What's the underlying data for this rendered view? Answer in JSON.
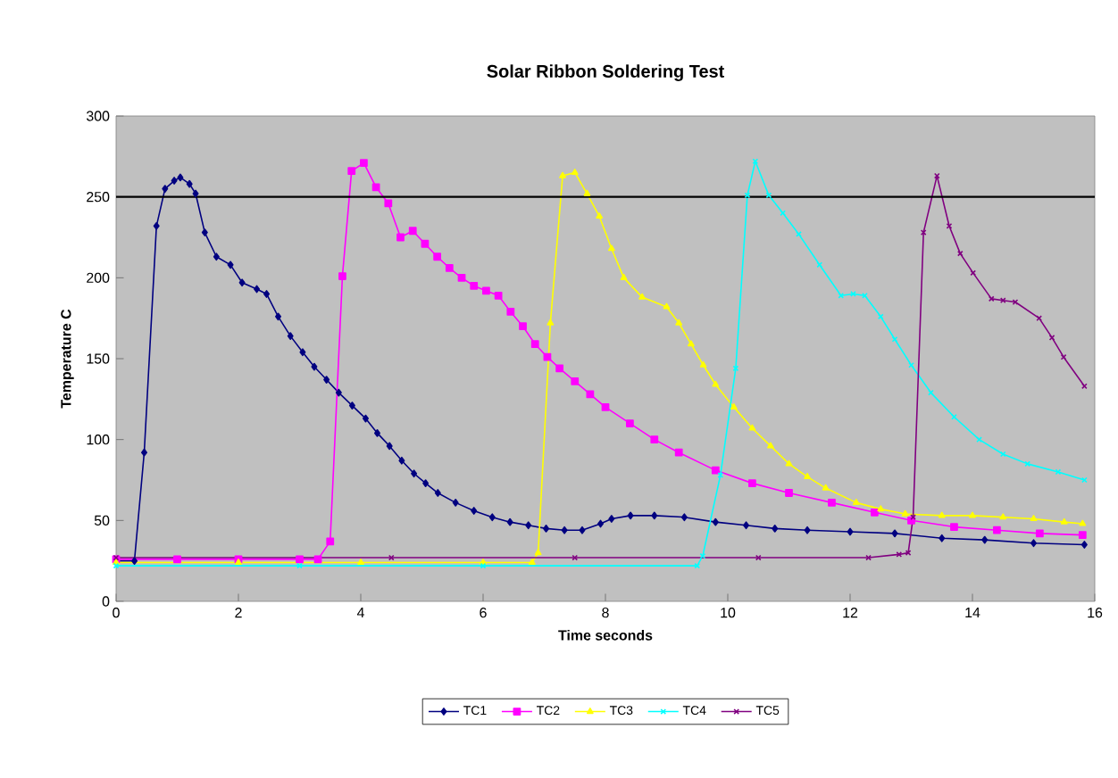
{
  "chart_data": {
    "type": "line",
    "title": "Solar Ribbon Soldering Test",
    "xlabel": "Time seconds",
    "ylabel": "Temperature C",
    "xlim": [
      0,
      16
    ],
    "xticks": [
      0,
      2,
      4,
      6,
      8,
      10,
      12,
      14,
      16
    ],
    "ylim": [
      0,
      300
    ],
    "yticks": [
      0,
      50,
      100,
      150,
      200,
      250,
      300
    ],
    "legend": "bottom",
    "grid": false,
    "ref_lines": [
      {
        "axis": "y",
        "value": 250,
        "color": "#000000"
      }
    ],
    "series": [
      {
        "name": "TC1",
        "color": "#000080",
        "marker": "diamond",
        "x": [
          0,
          0.3,
          0.46,
          0.66,
          0.8,
          0.95,
          1.05,
          1.2,
          1.3,
          1.45,
          1.64,
          1.87,
          2.06,
          2.3,
          2.46,
          2.65,
          2.85,
          3.05,
          3.24,
          3.44,
          3.64,
          3.86,
          4.08,
          4.27,
          4.47,
          4.67,
          4.87,
          5.06,
          5.26,
          5.55,
          5.85,
          6.15,
          6.44,
          6.74,
          7.03,
          7.33,
          7.62,
          7.92,
          8.1,
          8.41,
          8.8,
          9.29,
          9.8,
          10.3,
          10.77,
          11.3,
          12.0,
          12.73,
          13.5,
          14.2,
          15.0,
          15.83
        ],
        "values": [
          25,
          25,
          92,
          232,
          255,
          260,
          262,
          258,
          252,
          228,
          213,
          208,
          197,
          193,
          190,
          176,
          164,
          154,
          145,
          137,
          129,
          121,
          113,
          104,
          96,
          87,
          79,
          73,
          67,
          61,
          56,
          52,
          49,
          47,
          45,
          44,
          44,
          48,
          51,
          53,
          53,
          52,
          49,
          47,
          45,
          44,
          43,
          42,
          39,
          38,
          36,
          35
        ]
      },
      {
        "name": "TC2",
        "color": "#ff00ff",
        "marker": "square",
        "x": [
          0,
          1,
          2,
          3,
          3.3,
          3.5,
          3.7,
          3.85,
          4.05,
          4.25,
          4.45,
          4.65,
          4.85,
          5.05,
          5.25,
          5.45,
          5.65,
          5.85,
          6.05,
          6.25,
          6.45,
          6.65,
          6.85,
          7.05,
          7.25,
          7.5,
          7.75,
          8.0,
          8.4,
          8.8,
          9.2,
          9.8,
          10.4,
          11.0,
          11.7,
          12.4,
          13.0,
          13.7,
          14.4,
          15.1,
          15.8
        ],
        "values": [
          26,
          26,
          26,
          26,
          26,
          37,
          201,
          266,
          271,
          256,
          246,
          225,
          229,
          221,
          213,
          206,
          200,
          195,
          192,
          189,
          179,
          170,
          159,
          151,
          144,
          136,
          128,
          120,
          110,
          100,
          92,
          81,
          73,
          67,
          61,
          55,
          50,
          46,
          44,
          42,
          41
        ]
      },
      {
        "name": "TC3",
        "color": "#ffff00",
        "marker": "triangle",
        "x": [
          0,
          2,
          4,
          6,
          6.8,
          6.9,
          7.1,
          7.3,
          7.5,
          7.7,
          7.9,
          8.1,
          8.3,
          8.6,
          9.0,
          9.2,
          9.4,
          9.6,
          9.8,
          10.1,
          10.4,
          10.7,
          11.0,
          11.3,
          11.6,
          12.1,
          12.5,
          12.9,
          13.5,
          14.0,
          14.5,
          15.0,
          15.5,
          15.8
        ],
        "values": [
          24,
          24,
          24,
          24,
          24,
          30,
          172,
          263,
          265,
          252,
          238,
          218,
          200,
          188,
          182,
          172,
          159,
          146,
          134,
          120,
          107,
          96,
          85,
          77,
          70,
          61,
          57,
          54,
          53,
          53,
          52,
          51,
          49,
          48
        ]
      },
      {
        "name": "TC4",
        "color": "#00ffff",
        "marker": "cross",
        "x": [
          0,
          3,
          6,
          9.5,
          9.59,
          9.88,
          10.13,
          10.32,
          10.45,
          10.67,
          10.9,
          11.16,
          11.5,
          11.85,
          12.05,
          12.24,
          12.5,
          12.73,
          13.0,
          13.32,
          13.7,
          14.11,
          14.5,
          14.9,
          15.4,
          15.83
        ],
        "values": [
          22,
          22,
          22,
          22,
          28,
          78,
          144,
          251,
          272,
          251,
          240,
          227,
          208,
          189,
          190,
          189,
          176,
          162,
          146,
          129,
          114,
          100,
          91,
          85,
          80,
          75
        ]
      },
      {
        "name": "TC5",
        "color": "#800080",
        "marker": "cross",
        "x": [
          0,
          4.5,
          7.5,
          10.5,
          12.3,
          12.8,
          12.95,
          13.03,
          13.2,
          13.42,
          13.62,
          13.8,
          14.01,
          14.31,
          14.5,
          14.7,
          15.09,
          15.3,
          15.49,
          15.83
        ],
        "values": [
          27,
          27,
          27,
          27,
          27,
          29,
          30,
          52,
          228,
          263,
          232,
          215,
          203,
          187,
          186,
          185,
          175,
          163,
          151,
          133
        ]
      }
    ]
  }
}
